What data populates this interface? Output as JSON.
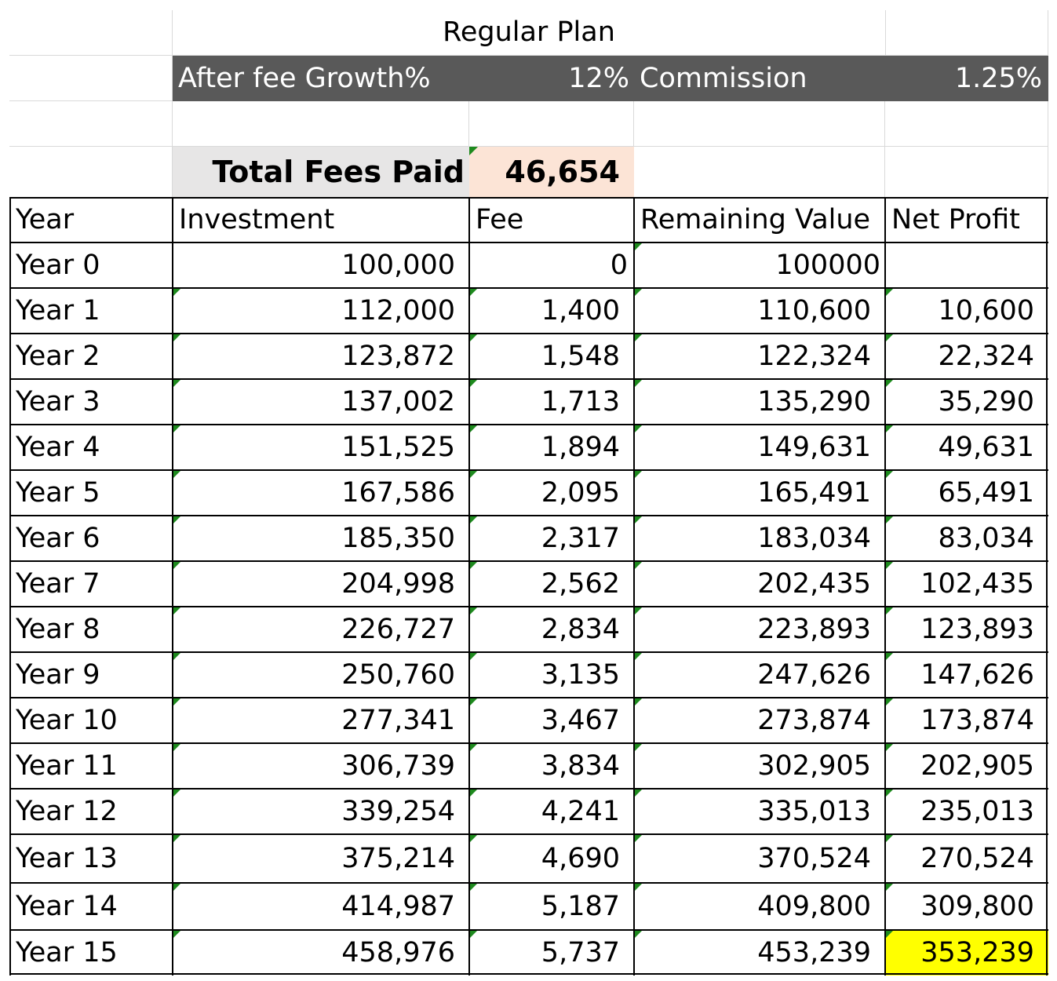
{
  "plan_title": "Regular Plan",
  "rate_row": {
    "growth_label": "After fee Growth%",
    "growth_value": "12%",
    "commission_label": "Commission",
    "commission_value": "1.25%"
  },
  "total_fees": {
    "label": "Total Fees Paid",
    "value": "46,654"
  },
  "table": {
    "headers": [
      "Year",
      "Investment",
      "Fee",
      "Remaining Value",
      "Net Profit"
    ],
    "rows": [
      [
        "Year 0",
        "100,000",
        "0",
        "100000",
        ""
      ],
      [
        "Year 1",
        "112,000",
        "1,400",
        "110,600",
        "10,600"
      ],
      [
        "Year 2",
        "123,872",
        "1,548",
        "122,324",
        "22,324"
      ],
      [
        "Year 3",
        "137,002",
        "1,713",
        "135,290",
        "35,290"
      ],
      [
        "Year 4",
        "151,525",
        "1,894",
        "149,631",
        "49,631"
      ],
      [
        "Year 5",
        "167,586",
        "2,095",
        "165,491",
        "65,491"
      ],
      [
        "Year 6",
        "185,350",
        "2,317",
        "183,034",
        "83,034"
      ],
      [
        "Year 7",
        "204,998",
        "2,562",
        "202,435",
        "102,435"
      ],
      [
        "Year 8",
        "226,727",
        "2,834",
        "223,893",
        "123,893"
      ],
      [
        "Year 9",
        "250,760",
        "3,135",
        "247,626",
        "147,626"
      ],
      [
        "Year 10",
        "277,341",
        "3,467",
        "273,874",
        "173,874"
      ],
      [
        "Year 11",
        "306,739",
        "3,834",
        "302,905",
        "202,905"
      ],
      [
        "Year 12",
        "339,254",
        "4,241",
        "335,013",
        "235,013"
      ],
      [
        "Year 13",
        "375,214",
        "4,690",
        "370,524",
        "270,524"
      ],
      [
        "Year 14",
        "414,987",
        "5,187",
        "409,800",
        "309,800"
      ],
      [
        "Year 15",
        "458,976",
        "5,737",
        "453,239",
        "353,239"
      ]
    ]
  },
  "colors": {
    "header_band": "#595959",
    "total_label_fill": "#e7e6e6",
    "total_value_fill": "#fce4d6",
    "highlight_fill": "#ffff00",
    "error_triangle": "#1e8a1e"
  },
  "highlighted_cell": "Net Profit, Year 15"
}
